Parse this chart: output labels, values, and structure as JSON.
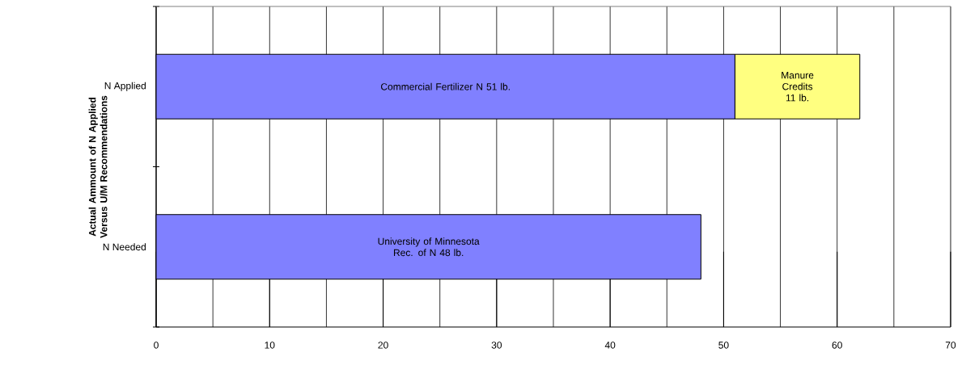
{
  "chart_data": {
    "type": "bar",
    "orientation": "horizontal",
    "stacked": true,
    "ylabel": "Actual Ammount of N Applied Versus U/M Recommendations",
    "categories": [
      "N Applied",
      "N Needed"
    ],
    "series": [
      {
        "color": "#8080ff",
        "values": [
          51,
          48
        ],
        "value_labels": [
          "Commercial Fertilizer N 51 lb.",
          "University of Minnesota Rec. of N 48 lb."
        ]
      },
      {
        "color": "#ffff80",
        "values": [
          11,
          null
        ],
        "value_labels": [
          "Manure Credits 11 lb.",
          null
        ]
      }
    ],
    "xlim": [
      0,
      70
    ],
    "xticks": [
      0,
      {
        "value": 5,
        "label": null
      },
      10,
      {
        "value": 15,
        "label": null
      },
      20,
      {
        "value": 25,
        "label": null
      },
      30,
      {
        "value": 35,
        "label": null
      },
      40,
      {
        "value": 45,
        "label": null
      },
      50,
      {
        "value": 55,
        "label": null
      },
      60,
      {
        "value": 65,
        "label": null
      },
      70
    ],
    "grid": "x"
  }
}
